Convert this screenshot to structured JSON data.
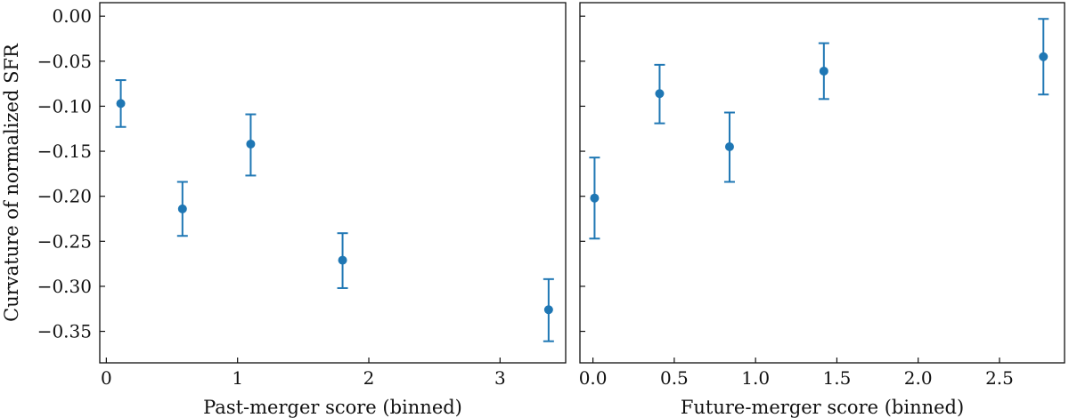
{
  "chart_data": [
    {
      "type": "scatter",
      "title": "",
      "xlabel": "Past-merger score (binned)",
      "ylabel": "Curvature of normalized SFR",
      "xlim": [
        -0.05,
        3.5
      ],
      "ylim": [
        -0.385,
        0.015
      ],
      "xticks": [
        0,
        1,
        2,
        3
      ],
      "xtick_labels": [
        "0",
        "1",
        "2",
        "3"
      ],
      "yticks": [
        0.0,
        -0.05,
        -0.1,
        -0.15,
        -0.2,
        -0.25,
        -0.3,
        -0.35
      ],
      "ytick_labels": [
        "0.00",
        "−0.05",
        "−0.10",
        "−0.15",
        "−0.20",
        "−0.25",
        "−0.30",
        "−0.35"
      ],
      "grid": false,
      "color": "#1f77b4",
      "series": [
        {
          "points": [
            {
              "x": 0.11,
              "y": -0.097,
              "yerr_low": -0.123,
              "yerr_high": -0.071
            },
            {
              "x": 0.58,
              "y": -0.214,
              "yerr_low": -0.244,
              "yerr_high": -0.184
            },
            {
              "x": 1.1,
              "y": -0.142,
              "yerr_low": -0.177,
              "yerr_high": -0.109
            },
            {
              "x": 1.8,
              "y": -0.271,
              "yerr_low": -0.302,
              "yerr_high": -0.241
            },
            {
              "x": 3.37,
              "y": -0.326,
              "yerr_low": -0.361,
              "yerr_high": -0.292
            }
          ]
        }
      ]
    },
    {
      "type": "scatter",
      "title": "",
      "xlabel": "Future-merger score (binned)",
      "ylabel": "",
      "xlim": [
        -0.08,
        2.9
      ],
      "ylim": [
        -0.385,
        0.015
      ],
      "xticks": [
        0.0,
        0.5,
        1.0,
        1.5,
        2.0,
        2.5
      ],
      "xtick_labels": [
        "0.0",
        "0.5",
        "1.0",
        "1.5",
        "2.0",
        "2.5"
      ],
      "yticks": [
        0.0,
        -0.05,
        -0.1,
        -0.15,
        -0.2,
        -0.25,
        -0.3,
        -0.35
      ],
      "ytick_labels": [],
      "grid": false,
      "color": "#1f77b4",
      "series": [
        {
          "points": [
            {
              "x": 0.01,
              "y": -0.202,
              "yerr_low": -0.247,
              "yerr_high": -0.157
            },
            {
              "x": 0.41,
              "y": -0.086,
              "yerr_low": -0.119,
              "yerr_high": -0.054
            },
            {
              "x": 0.84,
              "y": -0.145,
              "yerr_low": -0.184,
              "yerr_high": -0.107
            },
            {
              "x": 1.42,
              "y": -0.061,
              "yerr_low": -0.092,
              "yerr_high": -0.03
            },
            {
              "x": 2.77,
              "y": -0.045,
              "yerr_low": -0.087,
              "yerr_high": -0.003
            }
          ]
        }
      ]
    }
  ]
}
